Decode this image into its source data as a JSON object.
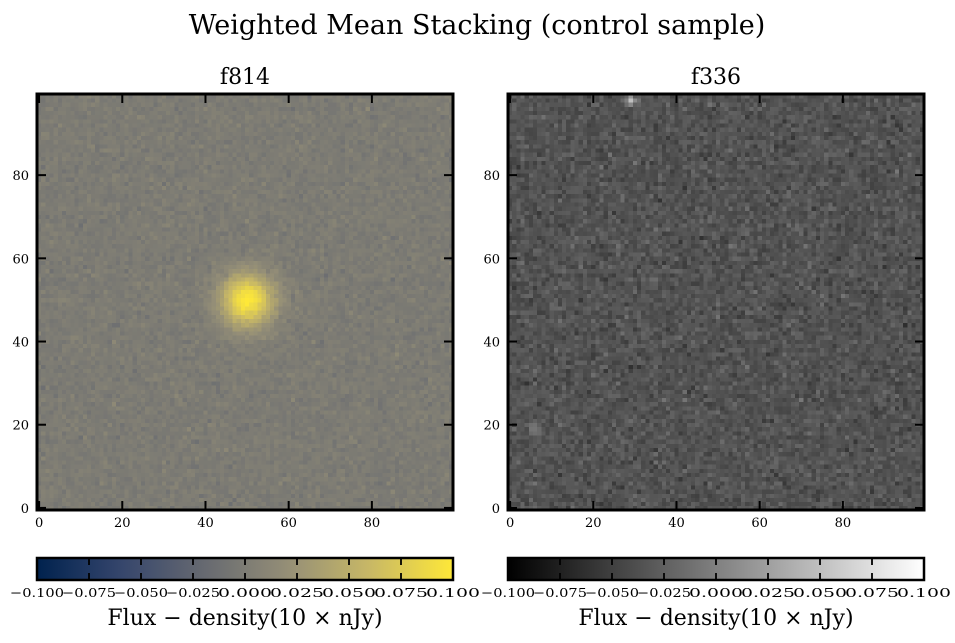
{
  "figure": {
    "suptitle": "Weighted Mean Stacking (control sample)"
  },
  "chart_data": [
    {
      "type": "heatmap",
      "title": "f814",
      "colormap": "cividis",
      "colormap_stops": [
        "#00224e",
        "#35456c",
        "#666970",
        "#948e77",
        "#c8b866",
        "#fee838"
      ],
      "x_ticks": [
        0,
        20,
        40,
        60,
        80
      ],
      "y_ticks": [
        0,
        20,
        40,
        60,
        80
      ],
      "xlim": [
        0,
        99
      ],
      "ylim": [
        0,
        99
      ],
      "grid_size": 100,
      "background_level": 0.0,
      "noise_sigma": 0.004,
      "sources": [
        {
          "x": 50,
          "y": 50,
          "peak": 0.1,
          "sigma": 4.5
        }
      ],
      "colorbar": {
        "vmin": -0.1,
        "vmax": 0.1,
        "ticks": [
          "−0.100",
          "−0.075",
          "−0.050",
          "−0.025",
          "0.000",
          "0.025",
          "0.050",
          "0.075",
          "0.100"
        ],
        "label": "Flux − density(10 × nJy)"
      }
    },
    {
      "type": "heatmap",
      "title": "f336",
      "colormap": "gray",
      "colormap_stops": [
        "#000000",
        "#ffffff"
      ],
      "x_ticks": [
        0,
        20,
        40,
        60,
        80
      ],
      "y_ticks": [
        0,
        20,
        40,
        60,
        80
      ],
      "xlim": [
        0,
        99
      ],
      "ylim": [
        0,
        99
      ],
      "grid_size": 100,
      "background_level": -0.035,
      "noise_sigma": 0.008,
      "sources": [
        {
          "x": 29,
          "y": 98,
          "peak": 0.09,
          "sigma": 0.8
        },
        {
          "x": 6,
          "y": 19,
          "peak": 0.04,
          "sigma": 1.0
        }
      ],
      "colorbar": {
        "vmin": -0.1,
        "vmax": 0.1,
        "ticks": [
          "−0.100",
          "−0.075",
          "−0.050",
          "−0.025",
          "0.000",
          "0.025",
          "0.050",
          "0.075",
          "0.100"
        ],
        "label": "Flux − density(10 × nJy)"
      }
    }
  ]
}
